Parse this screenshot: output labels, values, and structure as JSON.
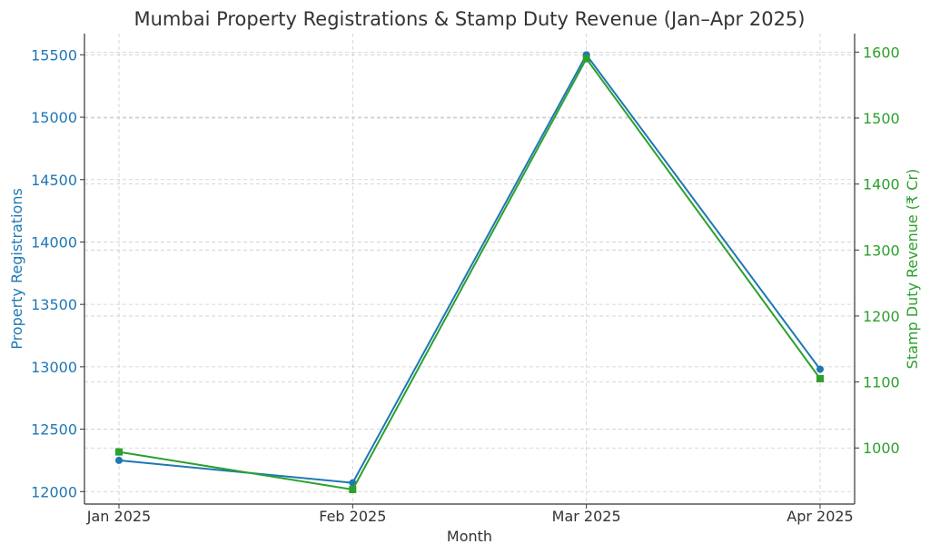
{
  "chart_data": {
    "type": "line",
    "title": "Mumbai Property Registrations & Stamp Duty Revenue (Jan–Apr 2025)",
    "xlabel": "Month",
    "ylabel_left": "Property Registrations",
    "ylabel_right": "Stamp Duty Revenue (₹ Cr)",
    "categories": [
      "Jan 2025",
      "Feb 2025",
      "Mar 2025",
      "Apr 2025"
    ],
    "y_left_ticks": [
      "12000",
      "12500",
      "13000",
      "13500",
      "14000",
      "14500",
      "15000",
      "15500"
    ],
    "y_right_ticks": [
      "1000",
      "1100",
      "1200",
      "1300",
      "1400",
      "1500",
      "1600"
    ],
    "ylim_left": [
      11900,
      15670
    ],
    "ylim_right": [
      915,
      1628
    ],
    "grid": true,
    "series": [
      {
        "axis": "left",
        "color": "#1f77b4",
        "marker": "circle",
        "values": [
          12250,
          12070,
          15500,
          12980
        ]
      },
      {
        "axis": "right",
        "color": "#2ca02c",
        "marker": "square",
        "values": [
          994,
          937,
          1590,
          1105
        ]
      }
    ],
    "colors": {
      "left_axis": "#1f77b4",
      "right_axis": "#2ca02c",
      "text": "#333333",
      "grid": "#cccccc"
    }
  }
}
